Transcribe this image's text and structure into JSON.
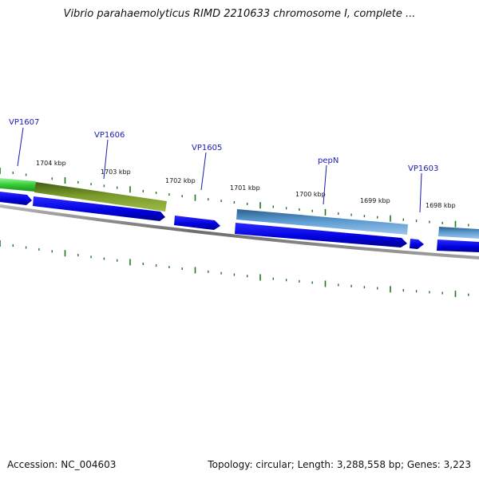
{
  "title": "Vibrio parahaemolyticus RIMD 2210633 chromosome I, complete ...",
  "footer": {
    "accession": "Accession: NC_004603",
    "summary": "Topology: circular; Length: 3,288,558 bp; Genes: 3,223"
  },
  "colors": {
    "backbone": "#7a7a7a",
    "cds": "#0000e6",
    "tick": "#1a7a1a",
    "label": "#1a1ab3",
    "gene_green": "#3ccf3c",
    "gene_olive": "#6e8c22",
    "gene_steel": "#4f8fc4"
  },
  "kbp_labels": [
    "1704 kbp",
    "1703 kbp",
    "1702 kbp",
    "1701 kbp",
    "1700 kbp",
    "1699 kbp",
    "1698 kbp"
  ],
  "gene_labels": [
    "VP1607",
    "VP1606",
    "VP1605",
    "pepN",
    "VP1603"
  ]
}
